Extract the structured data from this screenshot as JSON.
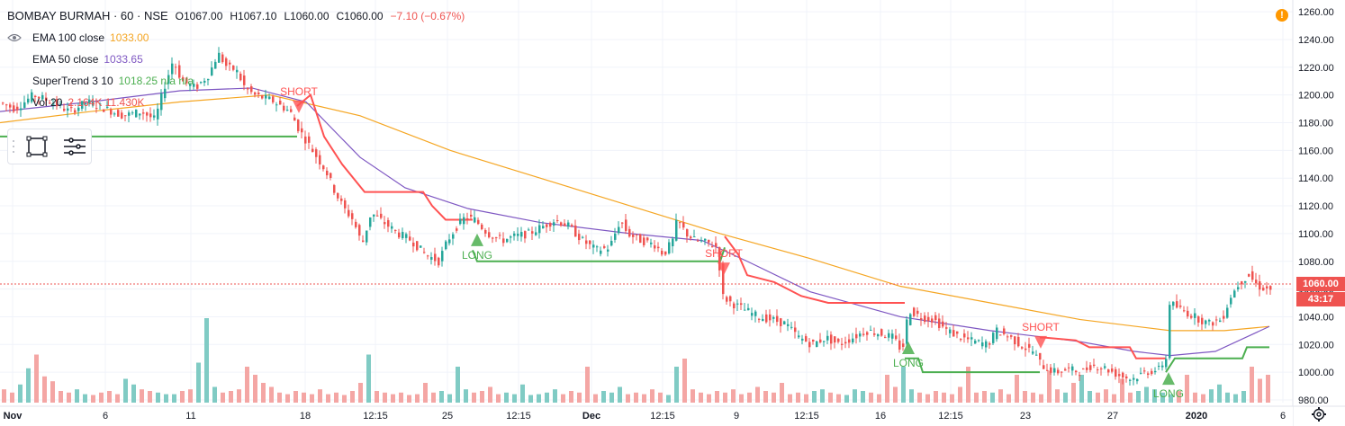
{
  "legend": {
    "symbol": "BOMBAY BURMAH · 60 · NSE",
    "open": "O1067.00",
    "high": "H1067.10",
    "low": "L1060.00",
    "close": "C1060.00",
    "change": "−7.10 (−0.67%)",
    "indicators": [
      {
        "name": "EMA 100 close",
        "value": "1033.00",
        "color": "#f5a623"
      },
      {
        "name": "EMA 50 close",
        "value": "1033.65",
        "color": "#7e57c2"
      },
      {
        "name": "SuperTrend 3 10",
        "value": "1018.25  n/a  n/a",
        "color": "#4caf50"
      },
      {
        "name": "Vol 20",
        "value": "2.164K  11.430K",
        "color": "#ef5350"
      }
    ]
  },
  "alert_icon": "!",
  "current_price": "1060.00",
  "countdown": "43:17",
  "colors": {
    "up": "#26a69a",
    "down": "#ef5350",
    "ema100": "#f5a623",
    "ema50": "#7e57c2",
    "st_up": "#4caf50",
    "st_down": "#ff5252"
  },
  "chart_data": {
    "type": "candlestick",
    "title": "BOMBAY BURMAH · 60 · NSE",
    "ylim": [
      975,
      1265
    ],
    "y_ticks": [
      "1260.00",
      "1240.00",
      "1220.00",
      "1200.00",
      "1180.00",
      "1160.00",
      "1140.00",
      "1120.00",
      "1100.00",
      "1080.00",
      "1060.00",
      "1040.00",
      "1020.00",
      "1000.00",
      "980.00"
    ],
    "x_ticks": [
      "Nov",
      "6",
      "11",
      "18",
      "12:15",
      "25",
      "12:15",
      "Dec",
      "12:15",
      "9",
      "12:15",
      "16",
      "12:15",
      "23",
      "27",
      "2020",
      "6"
    ],
    "price_path": [
      [
        0,
        1195
      ],
      [
        20,
        1190
      ],
      [
        40,
        1200
      ],
      [
        60,
        1195
      ],
      [
        80,
        1188
      ],
      [
        100,
        1195
      ],
      [
        120,
        1190
      ],
      [
        140,
        1185
      ],
      [
        160,
        1188
      ],
      [
        175,
        1182
      ],
      [
        185,
        1205
      ],
      [
        195,
        1225
      ],
      [
        205,
        1210
      ],
      [
        220,
        1205
      ],
      [
        235,
        1215
      ],
      [
        245,
        1230
      ],
      [
        255,
        1220
      ],
      [
        265,
        1218
      ],
      [
        275,
        1205
      ],
      [
        285,
        1200
      ],
      [
        295,
        1198
      ],
      [
        305,
        1196
      ],
      [
        315,
        1192
      ],
      [
        325,
        1188
      ],
      [
        335,
        1175
      ],
      [
        345,
        1165
      ],
      [
        355,
        1155
      ],
      [
        365,
        1145
      ],
      [
        375,
        1130
      ],
      [
        385,
        1118
      ],
      [
        395,
        1110
      ],
      [
        405,
        1092
      ],
      [
        415,
        1115
      ],
      [
        425,
        1110
      ],
      [
        435,
        1105
      ],
      [
        445,
        1100
      ],
      [
        460,
        1095
      ],
      [
        475,
        1085
      ],
      [
        490,
        1080
      ],
      [
        500,
        1095
      ],
      [
        510,
        1105
      ],
      [
        520,
        1112
      ],
      [
        530,
        1110
      ],
      [
        545,
        1100
      ],
      [
        560,
        1095
      ],
      [
        575,
        1098
      ],
      [
        590,
        1100
      ],
      [
        605,
        1105
      ],
      [
        620,
        1110
      ],
      [
        635,
        1105
      ],
      [
        650,
        1095
      ],
      [
        665,
        1088
      ],
      [
        680,
        1090
      ],
      [
        692,
        1110
      ],
      [
        700,
        1100
      ],
      [
        715,
        1095
      ],
      [
        730,
        1092
      ],
      [
        740,
        1085
      ],
      [
        750,
        1095
      ],
      [
        755,
        1110
      ],
      [
        765,
        1100
      ],
      [
        775,
        1095
      ],
      [
        790,
        1093
      ],
      [
        800,
        1090
      ],
      [
        805,
        1055
      ],
      [
        815,
        1050
      ],
      [
        830,
        1045
      ],
      [
        845,
        1040
      ],
      [
        860,
        1038
      ],
      [
        875,
        1035
      ],
      [
        890,
        1025
      ],
      [
        905,
        1020
      ],
      [
        920,
        1025
      ],
      [
        935,
        1020
      ],
      [
        950,
        1025
      ],
      [
        965,
        1030
      ],
      [
        980,
        1028
      ],
      [
        995,
        1025
      ],
      [
        1005,
        1015
      ],
      [
        1012,
        1045
      ],
      [
        1025,
        1040
      ],
      [
        1040,
        1038
      ],
      [
        1055,
        1030
      ],
      [
        1070,
        1025
      ],
      [
        1085,
        1022
      ],
      [
        1100,
        1020
      ],
      [
        1110,
        1030
      ],
      [
        1125,
        1025
      ],
      [
        1140,
        1018
      ],
      [
        1150,
        1015
      ],
      [
        1160,
        1005
      ],
      [
        1175,
        1000
      ],
      [
        1190,
        1002
      ],
      [
        1205,
        1000
      ],
      [
        1215,
        1005
      ],
      [
        1230,
        1003
      ],
      [
        1245,
        998
      ],
      [
        1260,
        995
      ],
      [
        1275,
        1000
      ],
      [
        1290,
        1002
      ],
      [
        1298,
        1010
      ],
      [
        1302,
        1050
      ],
      [
        1315,
        1045
      ],
      [
        1330,
        1040
      ],
      [
        1345,
        1035
      ],
      [
        1360,
        1038
      ],
      [
        1370,
        1055
      ],
      [
        1380,
        1065
      ],
      [
        1390,
        1070
      ],
      [
        1400,
        1062
      ],
      [
        1410,
        1060
      ]
    ],
    "ema100": [
      [
        0,
        1180
      ],
      [
        100,
        1188
      ],
      [
        200,
        1195
      ],
      [
        300,
        1200
      ],
      [
        400,
        1185
      ],
      [
        500,
        1160
      ],
      [
        600,
        1140
      ],
      [
        700,
        1120
      ],
      [
        800,
        1100
      ],
      [
        900,
        1082
      ],
      [
        1000,
        1062
      ],
      [
        1100,
        1050
      ],
      [
        1200,
        1038
      ],
      [
        1300,
        1030
      ],
      [
        1360,
        1030
      ],
      [
        1410,
        1033
      ]
    ],
    "ema50": [
      [
        0,
        1188
      ],
      [
        100,
        1195
      ],
      [
        200,
        1203
      ],
      [
        280,
        1205
      ],
      [
        340,
        1195
      ],
      [
        400,
        1155
      ],
      [
        450,
        1133
      ],
      [
        520,
        1118
      ],
      [
        600,
        1108
      ],
      [
        700,
        1100
      ],
      [
        780,
        1095
      ],
      [
        830,
        1080
      ],
      [
        900,
        1058
      ],
      [
        1000,
        1040
      ],
      [
        1100,
        1030
      ],
      [
        1200,
        1022
      ],
      [
        1260,
        1015
      ],
      [
        1300,
        1012
      ],
      [
        1350,
        1015
      ],
      [
        1410,
        1033
      ]
    ],
    "supertrend": [
      {
        "trend": "up",
        "points": [
          [
            0,
            1170
          ],
          [
            330,
            1170
          ]
        ]
      },
      {
        "trend": "down",
        "points": [
          [
            330,
            1192
          ],
          [
            345,
            1200
          ],
          [
            360,
            1170
          ],
          [
            380,
            1150
          ],
          [
            405,
            1130
          ],
          [
            470,
            1130
          ],
          [
            480,
            1120
          ],
          [
            495,
            1110
          ],
          [
            525,
            1110
          ]
        ]
      },
      {
        "trend": "up",
        "points": [
          [
            525,
            1088
          ],
          [
            530,
            1080
          ],
          [
            800,
            1080
          ],
          [
            805,
            1090
          ]
        ]
      },
      {
        "trend": "down",
        "points": [
          [
            805,
            1098
          ],
          [
            820,
            1085
          ],
          [
            830,
            1070
          ],
          [
            860,
            1065
          ],
          [
            890,
            1055
          ],
          [
            920,
            1050
          ],
          [
            1005,
            1050
          ]
        ]
      },
      {
        "trend": "up",
        "points": [
          [
            1005,
            1010
          ],
          [
            1020,
            1010
          ],
          [
            1025,
            1000
          ],
          [
            1155,
            1000
          ]
        ]
      },
      {
        "trend": "down",
        "points": [
          [
            1155,
            1025
          ],
          [
            1160,
            1025
          ],
          [
            1195,
            1023
          ],
          [
            1210,
            1018
          ],
          [
            1255,
            1018
          ],
          [
            1262,
            1010
          ],
          [
            1295,
            1010
          ]
        ]
      },
      {
        "trend": "up",
        "points": [
          [
            1295,
            1000
          ],
          [
            1305,
            1010
          ],
          [
            1380,
            1010
          ],
          [
            1385,
            1018
          ],
          [
            1410,
            1018
          ]
        ]
      }
    ],
    "signals": [
      {
        "label": "SHORT",
        "x": 332,
        "type": "short"
      },
      {
        "label": "LONG",
        "x": 530,
        "type": "long"
      },
      {
        "label": "SHORT",
        "x": 804,
        "type": "short"
      },
      {
        "label": "LONG",
        "x": 1009,
        "type": "long"
      },
      {
        "label": "SHORT",
        "x": 1156,
        "type": "short"
      },
      {
        "label": "LONG",
        "x": 1298,
        "type": "long"
      }
    ],
    "volume_heights": [
      12,
      8,
      18,
      38,
      55,
      28,
      22,
      10,
      8,
      12,
      6,
      5,
      8,
      10,
      6,
      25,
      18,
      12,
      10,
      8,
      6,
      6,
      10,
      12,
      45,
      100,
      15,
      8,
      10,
      12,
      40,
      30,
      20,
      15,
      8,
      6,
      10,
      8,
      6,
      12,
      6,
      8,
      5,
      10,
      20,
      55,
      10,
      8,
      6,
      8,
      5,
      6,
      20,
      8,
      10,
      6,
      40,
      12,
      8,
      10,
      15,
      6,
      8,
      6,
      18,
      5,
      6,
      8,
      12,
      6,
      10,
      8,
      40,
      6,
      10,
      8,
      15,
      6,
      8,
      6,
      12,
      8,
      5,
      40,
      50,
      12,
      8,
      6,
      10,
      8,
      12,
      6,
      8,
      15,
      10,
      8,
      20,
      6,
      8,
      6,
      10,
      12,
      8,
      6,
      5,
      12,
      10,
      8,
      6,
      30,
      15,
      40,
      12,
      8,
      6,
      10,
      8,
      6,
      15,
      40,
      8,
      10,
      8,
      12,
      6,
      30,
      10,
      8,
      6,
      35,
      12,
      8,
      20,
      30,
      10,
      8,
      12,
      6,
      25,
      8,
      10,
      15,
      12,
      8,
      6,
      10,
      30,
      8,
      6,
      12,
      18,
      8,
      6,
      10,
      40,
      25,
      30,
      18,
      12
    ]
  }
}
